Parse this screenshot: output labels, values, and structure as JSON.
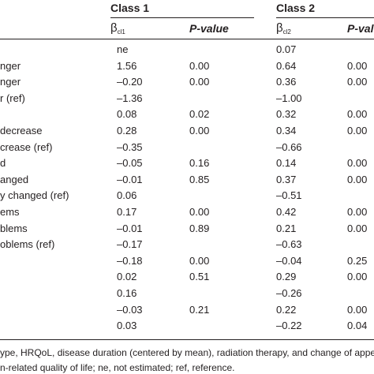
{
  "header": {
    "class1": "Class 1",
    "class2": "Class 2",
    "beta_symbol": "β",
    "beta1_sub": "cl1",
    "beta2_sub": "cl2",
    "pvalue_label": "P-value",
    "pvalue_label_cut": "P-val"
  },
  "rows": [
    {
      "label": "",
      "b1": "ne",
      "p1": "",
      "b2": "0.07",
      "p2": ""
    },
    {
      "label": "nger",
      "b1": "1.56",
      "p1": "0.00",
      "b2": "0.64",
      "p2": "0.00"
    },
    {
      "label": "nger",
      "b1": "–0.20",
      "p1": "0.00",
      "b2": "0.36",
      "p2": "0.00"
    },
    {
      "label": "r (ref)",
      "b1": "–1.36",
      "p1": "",
      "b2": "–1.00",
      "p2": ""
    },
    {
      "label": "",
      "b1": "0.08",
      "p1": "0.02",
      "b2": "0.32",
      "p2": "0.00"
    },
    {
      "label": " decrease",
      "b1": "0.28",
      "p1": "0.00",
      "b2": "0.34",
      "p2": "0.00"
    },
    {
      "label": "crease (ref)",
      "b1": "–0.35",
      "p1": "",
      "b2": "–0.66",
      "p2": ""
    },
    {
      "label": "d",
      "b1": "–0.05",
      "p1": "0.16",
      "b2": "0.14",
      "p2": "0.00"
    },
    {
      "label": "anged",
      "b1": "–0.01",
      "p1": "0.85",
      "b2": "0.37",
      "p2": "0.00"
    },
    {
      "label": "y changed (ref)",
      "b1": "0.06",
      "p1": "",
      "b2": "–0.51",
      "p2": ""
    },
    {
      "label": "ems",
      "b1": "0.17",
      "p1": "0.00",
      "b2": "0.42",
      "p2": "0.00"
    },
    {
      "label": "blems",
      "b1": "–0.01",
      "p1": "0.89",
      "b2": "0.21",
      "p2": "0.00"
    },
    {
      "label": "oblems (ref)",
      "b1": "–0.17",
      "p1": "",
      "b2": "–0.63",
      "p2": ""
    },
    {
      "label": "",
      "b1": "–0.18",
      "p1": "0.00",
      "b2": "–0.04",
      "p2": "0.25"
    },
    {
      "label": "",
      "b1": "0.02",
      "p1": "0.51",
      "b2": "0.29",
      "p2": "0.00"
    },
    {
      "label": "",
      "b1": "0.16",
      "p1": "",
      "b2": "–0.26",
      "p2": ""
    },
    {
      "label": "",
      "b1": "–0.03",
      "p1": "0.21",
      "b2": "0.22",
      "p2": "0.00"
    },
    {
      "label": "",
      "b1": "0.03",
      "p1": "",
      "b2": "–0.22",
      "p2": "0.04"
    }
  ],
  "footnotes": [
    "ype, HRQoL, disease duration (centered by mean), radiation therapy, and change of appeara",
    "n-related quality of life; ne, not estimated; ref, reference."
  ]
}
